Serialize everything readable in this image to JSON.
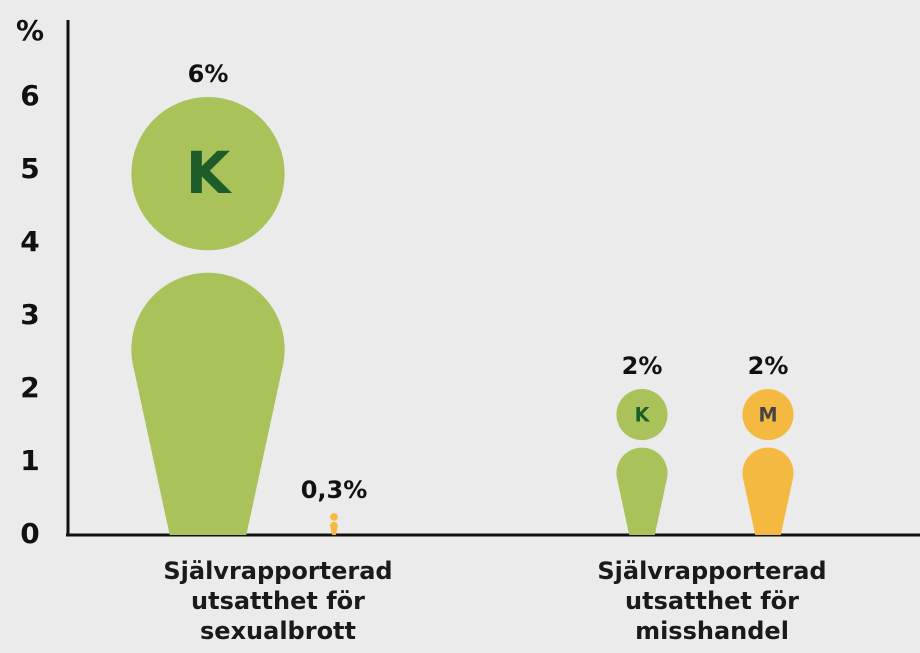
{
  "chart_data": {
    "type": "pictogram",
    "y_label": "%",
    "categories": [
      "Självrapporterad utsatthet för sexualbrott",
      "Självrapporterad utsatthet för misshandel"
    ],
    "series": [
      {
        "name": "K",
        "color": "#a9c25a",
        "values": [
          6,
          2
        ],
        "value_labels": [
          "6%",
          "2%"
        ]
      },
      {
        "name": "M",
        "color": "#f4b941",
        "values": [
          0.3,
          2
        ],
        "value_labels": [
          "0,3%",
          "2%"
        ]
      }
    ],
    "ylim": [
      0,
      7
    ],
    "yticks": [
      0,
      1,
      2,
      3,
      4,
      5,
      6
    ]
  }
}
